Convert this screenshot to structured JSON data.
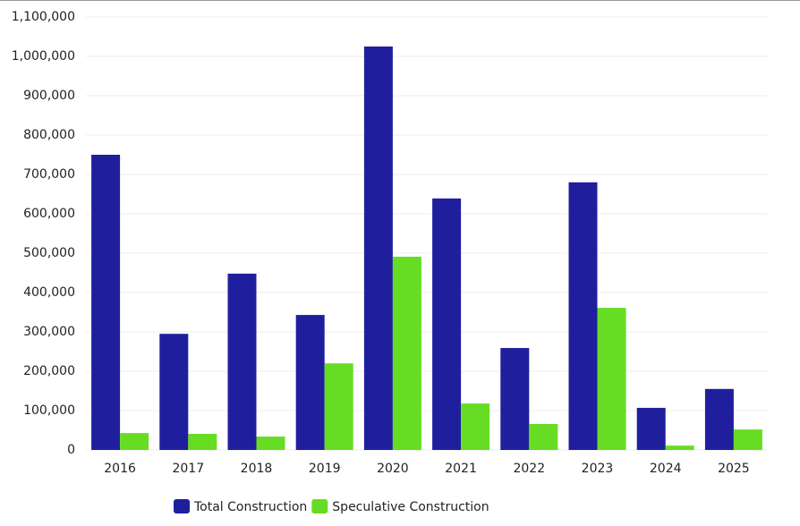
{
  "chart_data": {
    "type": "bar",
    "categories": [
      "2016",
      "2017",
      "2018",
      "2019",
      "2020",
      "2021",
      "2022",
      "2023",
      "2024",
      "2025"
    ],
    "series": [
      {
        "name": "Total Construction",
        "color": "#1f1f9e",
        "values": [
          750000,
          295000,
          448000,
          343000,
          1025000,
          639000,
          259000,
          680000,
          107000,
          155000
        ]
      },
      {
        "name": "Speculative Construction",
        "color": "#66dd22",
        "values": [
          43000,
          41000,
          34000,
          220000,
          491000,
          118000,
          66000,
          361000,
          11000,
          52000
        ]
      }
    ],
    "ylim": [
      0,
      1100000
    ],
    "yticks": [
      0,
      {
        "value": 100000,
        "label": "100,000"
      },
      {
        "value": 200000,
        "label": "200,000"
      },
      {
        "value": 300000,
        "label": "300,000"
      },
      {
        "value": 400000,
        "label": "400,000"
      },
      {
        "value": 500000,
        "label": "500,000"
      },
      {
        "value": 600000,
        "label": "600,000"
      },
      {
        "value": 700000,
        "label": "700,000"
      },
      {
        "value": 800000,
        "label": "800,000"
      },
      {
        "value": 900000,
        "label": "900,000"
      },
      {
        "value": 1000000,
        "label": "1,000,000"
      },
      {
        "value": 1100000,
        "label": "1,100,000"
      }
    ],
    "grid": true
  }
}
